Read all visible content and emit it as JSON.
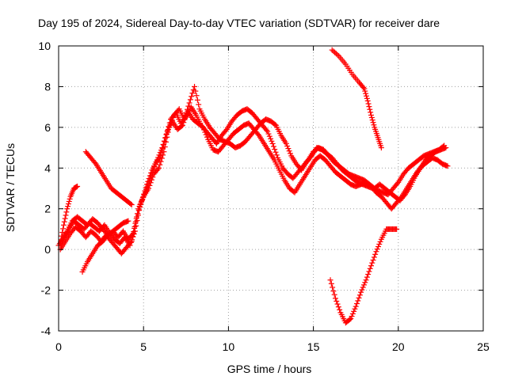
{
  "chart_data": {
    "type": "scatter",
    "title": "Day 195 of 2024, Sidereal Day-to-day VTEC variation (SDTVAR) for receiver dare",
    "xlabel": "GPS time / hours",
    "ylabel": "SDTVAR / TECUs",
    "xlim": [
      0,
      25
    ],
    "ylim": [
      -4,
      10
    ],
    "xticks": [
      "0",
      "5",
      "10",
      "15",
      "20",
      "25"
    ],
    "yticks": [
      "-4",
      "-2",
      "0",
      "2",
      "4",
      "6",
      "8",
      "10"
    ],
    "grid": true,
    "marker": "plus",
    "series_color": "#ff0000",
    "series": [
      {
        "name": "s1",
        "x": [
          0.0,
          0.3,
          0.6,
          0.9,
          1.2,
          1.5,
          1.8,
          2.1,
          2.4,
          2.7,
          3.0,
          3.3,
          3.6,
          3.9,
          4.2,
          4.5,
          4.8,
          5.1,
          5.4,
          5.7,
          6.0,
          6.3,
          6.6,
          6.9,
          7.2,
          7.5,
          7.8,
          8.1,
          8.4,
          8.7,
          9.0,
          9.3,
          9.6,
          9.9,
          10.2,
          10.5,
          10.8,
          11.1,
          11.4,
          11.7,
          12.0,
          12.3,
          12.6,
          12.9,
          13.2,
          13.5,
          13.8,
          14.1,
          14.4,
          14.7,
          15.0,
          15.3,
          15.6,
          15.9,
          16.2,
          16.5,
          16.8,
          17.1,
          17.4,
          17.7,
          18.0,
          18.3,
          18.6,
          18.9,
          19.2,
          19.5,
          19.8,
          20.1,
          20.4,
          20.7,
          21.0,
          21.3,
          21.6,
          21.9,
          22.2,
          22.5,
          22.8
        ],
        "y": [
          0.2,
          0.6,
          1.0,
          1.4,
          1.2,
          1.0,
          1.3,
          1.1,
          0.9,
          1.2,
          0.8,
          0.5,
          0.3,
          0.6,
          0.2,
          0.9,
          2.2,
          2.8,
          3.5,
          4.2,
          4.6,
          5.5,
          6.4,
          6.7,
          6.2,
          6.5,
          7.0,
          6.6,
          6.1,
          5.8,
          5.5,
          5.2,
          5.6,
          5.9,
          6.3,
          6.6,
          6.8,
          6.9,
          6.7,
          6.4,
          6.1,
          5.8,
          5.2,
          4.5,
          4.0,
          3.7,
          3.5,
          3.8,
          4.1,
          4.4,
          4.8,
          5.0,
          4.9,
          4.6,
          4.3,
          4.1,
          3.9,
          3.7,
          3.6,
          3.5,
          3.4,
          3.2,
          3.0,
          3.2,
          3.0,
          2.8,
          2.6,
          2.4,
          2.7,
          3.1,
          3.6,
          4.0,
          4.4,
          4.6,
          4.8,
          4.9,
          5.0
        ]
      },
      {
        "name": "s2",
        "x": [
          0.1,
          0.4,
          0.7,
          1.0,
          1.3,
          1.6,
          1.9,
          2.2,
          2.5,
          2.8,
          3.1,
          3.4,
          3.7,
          4.0,
          4.3,
          4.6,
          4.9,
          5.2,
          5.5,
          5.8,
          6.1,
          6.4,
          6.7,
          7.0,
          7.3,
          7.6,
          7.9,
          8.2,
          8.5,
          8.8,
          9.1,
          9.4,
          9.7,
          10.0,
          10.3,
          10.6,
          10.9,
          11.2,
          11.5,
          11.8,
          12.1,
          12.4,
          12.7,
          13.0,
          13.3,
          13.6,
          13.9,
          14.2,
          14.5,
          14.8,
          15.1,
          15.4,
          15.7,
          16.0,
          16.3,
          16.6,
          16.9,
          17.2,
          17.5,
          17.8,
          18.1,
          18.4,
          18.7,
          19.0,
          19.3,
          19.6,
          19.9,
          20.2,
          20.5,
          20.8,
          21.1,
          21.4,
          21.7,
          22.0,
          22.3,
          22.6,
          22.9
        ],
        "y": [
          0.0,
          0.4,
          0.8,
          1.1,
          0.9,
          0.6,
          0.9,
          0.7,
          0.4,
          0.7,
          0.4,
          0.1,
          -0.2,
          0.1,
          0.4,
          1.6,
          2.4,
          3.2,
          3.9,
          4.4,
          5.0,
          5.8,
          6.3,
          5.9,
          6.1,
          6.8,
          6.4,
          6.2,
          6.0,
          5.4,
          4.9,
          4.8,
          5.1,
          5.4,
          5.7,
          5.9,
          6.1,
          6.2,
          5.9,
          5.6,
          5.2,
          4.8,
          4.4,
          3.9,
          3.4,
          3.0,
          2.8,
          3.2,
          3.6,
          4.0,
          4.4,
          4.6,
          4.4,
          4.1,
          3.8,
          3.6,
          3.4,
          3.2,
          3.1,
          3.2,
          3.3,
          3.1,
          2.8,
          2.6,
          2.3,
          2.0,
          2.3,
          2.6,
          3.0,
          3.4,
          3.8,
          4.1,
          4.3,
          4.5,
          4.4,
          4.2,
          4.1
        ]
      },
      {
        "name": "s3",
        "x": [
          0.2,
          0.5,
          0.8,
          1.1,
          1.4,
          1.7,
          2.0,
          2.3,
          2.6,
          2.9,
          3.2,
          3.5,
          3.8,
          4.1,
          4.4,
          4.7,
          5.0,
          5.3,
          5.6,
          5.9,
          6.2,
          6.5,
          6.8,
          7.1,
          7.4,
          7.7,
          8.0,
          8.3,
          8.6,
          8.9,
          9.2,
          9.5,
          9.8,
          10.1,
          10.4,
          10.7,
          11.0,
          11.3,
          11.6,
          11.9,
          12.2,
          12.5,
          12.8,
          13.1,
          13.4,
          13.7,
          14.0,
          14.3,
          14.6,
          14.9,
          15.2,
          15.5,
          15.8,
          16.1,
          16.4,
          16.7,
          17.0,
          17.3,
          17.6,
          17.9,
          18.2,
          18.5,
          18.8,
          19.1,
          19.4,
          19.7,
          20.0,
          20.3,
          20.6,
          20.9,
          21.2,
          21.5,
          21.8,
          22.1,
          22.4,
          22.7
        ],
        "y": [
          0.4,
          0.9,
          1.4,
          1.6,
          1.4,
          1.2,
          1.5,
          1.3,
          1.0,
          0.7,
          0.9,
          0.6,
          0.9,
          0.5,
          0.8,
          2.0,
          2.6,
          3.0,
          3.7,
          4.0,
          4.8,
          6.0,
          6.6,
          6.9,
          6.4,
          7.2,
          8.0,
          6.9,
          6.4,
          6.0,
          5.7,
          5.4,
          5.3,
          5.2,
          5.0,
          5.1,
          5.3,
          5.6,
          5.9,
          6.2,
          6.4,
          6.3,
          6.1,
          5.6,
          5.2,
          4.6,
          4.2,
          3.9,
          4.3,
          4.6,
          5.0,
          4.9,
          4.7,
          4.5,
          4.2,
          3.9,
          3.7,
          3.5,
          3.3,
          3.2,
          3.1,
          3.0,
          2.9,
          2.8,
          2.7,
          3.0,
          3.3,
          3.7,
          4.0,
          4.2,
          4.4,
          4.6,
          4.7,
          4.8,
          4.9,
          5.1
        ]
      },
      {
        "name": "s4",
        "x": [
          0.1,
          0.3,
          0.5,
          0.7,
          0.9,
          1.1
        ],
        "y": [
          0.3,
          1.2,
          2.0,
          2.6,
          3.0,
          3.1
        ]
      },
      {
        "name": "s5",
        "x": [
          1.6,
          1.9,
          2.2,
          2.5,
          2.8,
          3.1,
          3.4,
          3.7,
          4.0,
          4.3
        ],
        "y": [
          4.8,
          4.5,
          4.2,
          3.8,
          3.4,
          3.0,
          2.8,
          2.6,
          2.4,
          2.2
        ]
      },
      {
        "name": "s6",
        "x": [
          1.4,
          1.7,
          2.0,
          2.3,
          2.6,
          2.9,
          3.2,
          3.5,
          3.8,
          4.1
        ],
        "y": [
          -1.1,
          -0.6,
          -0.2,
          0.2,
          0.4,
          0.7,
          0.9,
          1.1,
          1.3,
          1.4
        ]
      },
      {
        "name": "s7",
        "x": [
          16.0,
          16.3,
          16.6,
          16.9,
          17.2,
          17.5,
          17.8,
          18.1,
          18.4,
          18.7,
          19.0,
          19.3,
          19.6,
          19.9
        ],
        "y": [
          -1.5,
          -2.4,
          -3.1,
          -3.6,
          -3.4,
          -2.8,
          -2.1,
          -1.5,
          -0.8,
          -0.1,
          0.5,
          1.0,
          1.0,
          1.0
        ]
      },
      {
        "name": "s8",
        "x": [
          16.1,
          16.5,
          16.9,
          17.3,
          17.7,
          18.0,
          18.2,
          18.4,
          18.6,
          18.8,
          19.0
        ],
        "y": [
          9.8,
          9.5,
          9.1,
          8.6,
          8.2,
          7.9,
          7.3,
          6.6,
          6.0,
          5.5,
          5.0
        ]
      }
    ]
  }
}
